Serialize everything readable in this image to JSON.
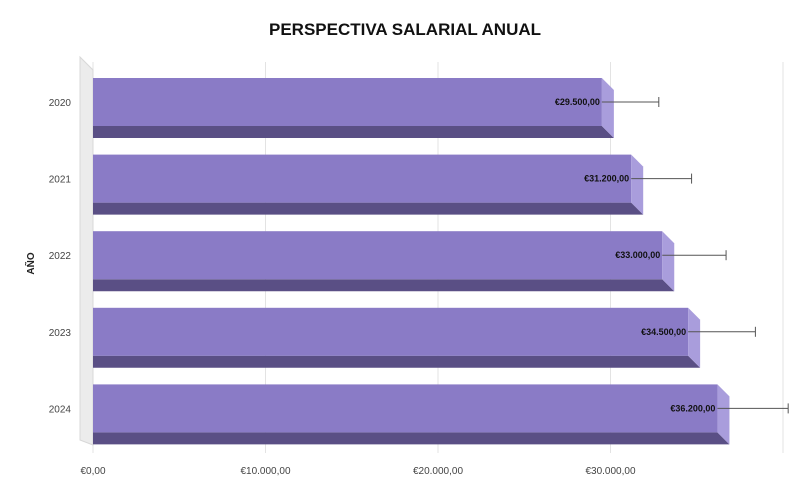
{
  "chart_data": {
    "type": "bar",
    "orientation": "horizontal",
    "title": "PERSPECTIVA SALARIAL ANUAL",
    "ylabel": "AÑO",
    "xlabel": "",
    "categories": [
      "2020",
      "2021",
      "2022",
      "2023",
      "2024"
    ],
    "values": [
      29500,
      31200,
      33000,
      34500,
      36200
    ],
    "data_labels": [
      "€29.500,00",
      "€31.200,00",
      "€33.000,00",
      "€34.500,00",
      "€36.200,00"
    ],
    "error_upper": [
      32800,
      34700,
      36700,
      38400,
      40300
    ],
    "xlim": [
      0,
      40000
    ],
    "xticks": [
      0,
      10000,
      20000,
      30000
    ],
    "xtick_labels": [
      "€0,00",
      "€10.000,00",
      "€20.000,00",
      "€30.000,00"
    ],
    "grid": true,
    "bar_color": "#8a7bc6",
    "bar_top_color": "#a99ddc",
    "bar_side_color": "#5a4f85"
  }
}
